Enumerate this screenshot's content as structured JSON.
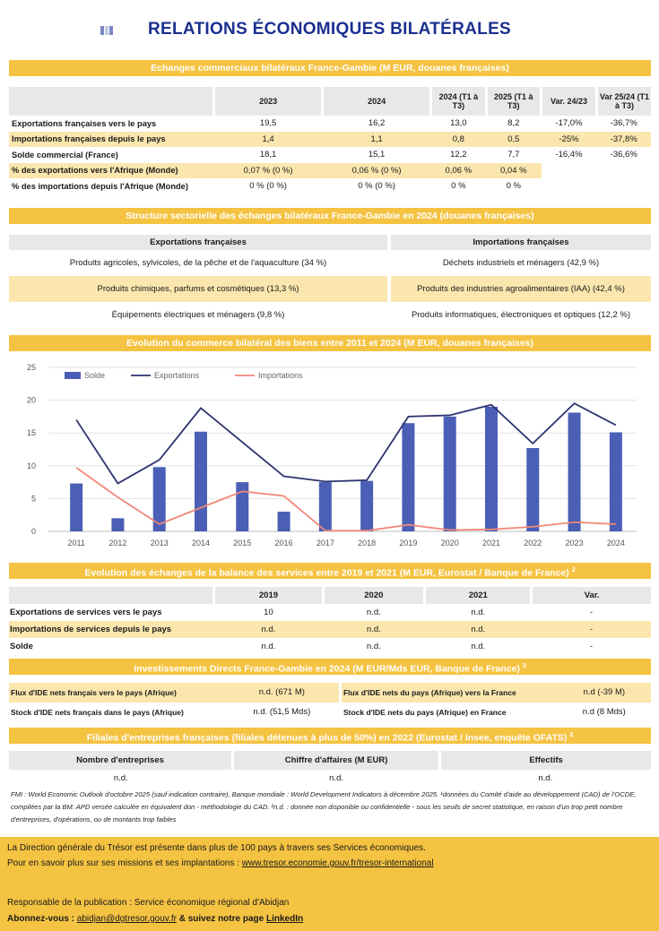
{
  "title": "RELATIONS ÉCONOMIQUES BILATÉRALES",
  "sections": {
    "trade": "Echanges commerciaux bilatéraux France-Gambie (M EUR, douanes françaises)",
    "structure": "Structure sectorielle des échanges bilatéraux France-Gambie en 2024 (douanes françaises)",
    "evolution": "Evolution du commerce bilatéral des biens entre 2011 et 2024 (M EUR, douanes françaises)",
    "services": "Evolution des échanges de la balance des services entre 2019 et 2021 (M EUR, Eurostat / Banque de France)",
    "services_sup": "2",
    "ide": "Investissements Directs France-Gambie en 2024 (M EUR/Mds EUR, Banque de France)",
    "ide_sup": "3",
    "filiales": "Filiales d'entreprises françaises (filiales détenues à plus de 50%) en 2022 (Eurostat / Insee, enquête OFATS)",
    "filiales_sup": "2"
  },
  "trade_table": {
    "headers": [
      "2023",
      "2024",
      "2024 (T1 à T3)",
      "2025 (T1 à T3)",
      "Var. 24/23",
      "Var 25/24 (T1 à T3)"
    ],
    "rows": [
      {
        "label": "Exportations françaises vers le pays",
        "values": [
          "19,5",
          "16,2",
          "13,0",
          "8,2",
          "-17,0%",
          "-36,7%"
        ]
      },
      {
        "label": "Importations françaises depuis le pays",
        "values": [
          "1,4",
          "1,1",
          "0,8",
          "0,5",
          "-25%",
          "-37,8%"
        ]
      },
      {
        "label": "Solde commercial (France)",
        "values": [
          "18,1",
          "15,1",
          "12,2",
          "7,7",
          "-16,4%",
          "-36,6%"
        ]
      },
      {
        "label": "% des exportations vers l'Afrique (Monde)",
        "values": [
          "0,07 % (0 %)",
          "0,06 % (0 %)",
          "0,06 %",
          "0,04 %",
          "",
          ""
        ]
      },
      {
        "label": "% des importations depuis l'Afrique (Monde)",
        "values": [
          "0 % (0 %)",
          "0 % (0 %)",
          "0 %",
          "0 %",
          "",
          ""
        ]
      }
    ]
  },
  "structure": {
    "exports_header": "Exportations françaises",
    "imports_header": "Importations françaises",
    "rows": [
      {
        "exp": "Produits agricoles, sylvicoles, de la pêche et de l'aquaculture (34 %)",
        "imp": "Déchets industriels et ménagers (42,9 %)"
      },
      {
        "exp": "Produits chimiques, parfums et cosmétiques (13,3 %)",
        "imp": "Produits des industries agroalimentaires (IAA) (42,4 %)"
      },
      {
        "exp": "Équipements électriques et ménagers (9,8 %)",
        "imp": "Produits informatiques, électroniques et optiques (12,2 %)"
      }
    ]
  },
  "chart_data": {
    "type": "bar",
    "title": "Evolution du commerce bilatéral des biens entre 2011 et 2024 (M EUR, douanes françaises)",
    "categories": [
      "2011",
      "2012",
      "2013",
      "2014",
      "2015",
      "2016",
      "2017",
      "2018",
      "2019",
      "2020",
      "2021",
      "2022",
      "2023",
      "2024"
    ],
    "series": [
      {
        "name": "Solde",
        "kind": "bar",
        "color": "#4a5fb5",
        "values": [
          7.3,
          2.0,
          9.8,
          15.2,
          7.5,
          3.0,
          7.5,
          7.7,
          16.5,
          17.5,
          19.0,
          12.7,
          18.1,
          15.1
        ]
      },
      {
        "name": "Exportations",
        "kind": "line",
        "color": "#2d3470",
        "values": [
          17.0,
          7.3,
          10.9,
          18.8,
          13.6,
          8.4,
          7.6,
          7.8,
          17.5,
          17.7,
          19.3,
          13.4,
          19.5,
          16.2
        ]
      },
      {
        "name": "Importations",
        "kind": "line",
        "color": "#f08878",
        "values": [
          9.7,
          5.2,
          1.1,
          3.6,
          6.1,
          5.4,
          0.1,
          0.1,
          1.0,
          0.2,
          0.3,
          0.7,
          1.4,
          1.1
        ]
      }
    ],
    "yticks": [
      "0",
      "5",
      "10",
      "15",
      "20",
      "25"
    ],
    "ylim": [
      0,
      25
    ]
  },
  "services_table": {
    "headers": [
      "2019",
      "2020",
      "2021",
      "Var."
    ],
    "rows": [
      {
        "label": "Exportations de services vers le pays",
        "values": [
          "10",
          "n.d.",
          "n.d.",
          "-"
        ]
      },
      {
        "label": "Importations de services depuis le pays",
        "values": [
          "n.d.",
          "n.d.",
          "n.d.",
          "-"
        ]
      },
      {
        "label": "Solde",
        "values": [
          "n.d.",
          "n.d.",
          "n.d.",
          "-"
        ]
      }
    ]
  },
  "ide": {
    "r1": {
      "l1": "Flux d'IDE nets français vers le pays (Afrique)",
      "v1": "n.d. (671 M)",
      "l2": "Flux d'IDE nets du pays (Afrique) vers la France",
      "v2": "n.d (-39 M)"
    },
    "r2": {
      "l1": "Stock d'IDE nets français dans le pays (Afrique)",
      "v1": "n.d. (51,5 Mds)",
      "l2": "Stock d'IDE nets du pays (Afrique) en France",
      "v2": "n.d (8 Mds)"
    }
  },
  "filiales": {
    "headers": [
      "Nombre d'entreprises",
      "Chiffre d'affaires (M EUR)",
      "Effectifs"
    ],
    "values": [
      "n.d.",
      "n.d.",
      "n.d."
    ]
  },
  "note": "FMI : World Economic Outlook d'octobre 2025 (sauf indication contraire), Banque mondiale : World Development Indicators à décembre 2025. ¹données du Comité d'aide au développement (CAD) de l'OCDE, compilées par la BM. APD versée calculée en équivalent don - méthodologie du CAD. ²n.d. : donnée non disponible ou confidentielle - sous les seuils de secret statistique, en raison d'un trop petit nombre d'entreprises, d'opérations, ou de montants trop faibles",
  "footer": {
    "line1": "La Direction générale du Trésor est présente dans plus de 100 pays à travers ses Services économiques.",
    "line2_prefix": "Pour en savoir plus sur ses missions et ses implantations : ",
    "line2_link": "www.tresor.economie.gouv.fr/tresor-international",
    "line3": "Responsable de la publication : Service économique régional d'Abidjan",
    "line4_prefix": "Abonnez-vous : ",
    "line4_email": "abidjan@dgtresor.gouv.fr",
    "line4_mid": " & suivez notre page ",
    "line4_link": "LinkedIn"
  }
}
